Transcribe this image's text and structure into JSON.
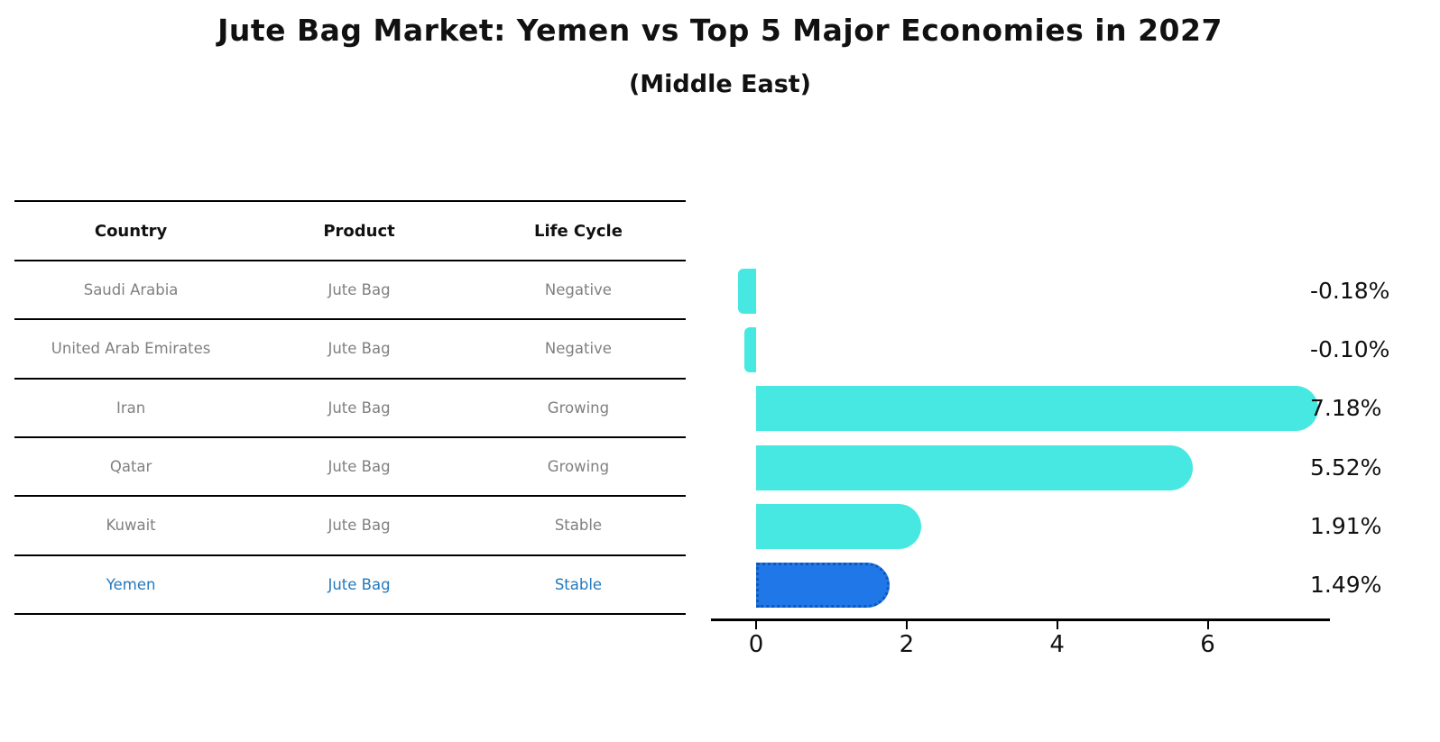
{
  "title": "Jute Bag Market: Yemen vs Top 5 Major Economies in 2027",
  "subtitle": "(Middle East)",
  "table": {
    "headers": [
      "Country",
      "Product",
      "Life Cycle"
    ],
    "rows": [
      {
        "country": "Saudi Arabia",
        "product": "Jute Bag",
        "life_cycle": "Negative",
        "highlight": false
      },
      {
        "country": "United Arab Emirates",
        "product": "Jute Bag",
        "life_cycle": "Negative",
        "highlight": false
      },
      {
        "country": "Iran",
        "product": "Jute Bag",
        "life_cycle": "Growing",
        "highlight": false
      },
      {
        "country": "Qatar",
        "product": "Jute Bag",
        "life_cycle": "Growing",
        "highlight": false
      },
      {
        "country": "Kuwait",
        "product": "Jute Bag",
        "life_cycle": "Stable",
        "highlight": false
      },
      {
        "country": "Yemen",
        "product": "Jute Bag",
        "life_cycle": "Stable",
        "highlight": true
      }
    ]
  },
  "chart_data": {
    "type": "bar",
    "orientation": "horizontal",
    "title": "Jute Bag Market: Yemen vs Top 5 Major Economies in 2027 (Middle East)",
    "categories": [
      "Saudi Arabia",
      "United Arab Emirates",
      "Iran",
      "Qatar",
      "Kuwait",
      "Yemen"
    ],
    "values": [
      -0.18,
      -0.1,
      7.18,
      5.52,
      1.91,
      1.49
    ],
    "value_labels": [
      "-0.18%",
      "-0.10%",
      "7.18%",
      "5.52%",
      "1.91%",
      "1.49%"
    ],
    "unit": "%",
    "xticks": [
      "0",
      "2",
      "4",
      "6"
    ],
    "xlim": [
      -0.6,
      7.6
    ],
    "grid": false,
    "legend": "none",
    "highlight_index": 5,
    "colors": {
      "bar": "#46E8E1",
      "highlight_bar": "#2078E8",
      "highlight_border": "#1157B8",
      "highlight_text": "#2379BD",
      "row_text": "#808080",
      "axis": "#000000"
    }
  }
}
